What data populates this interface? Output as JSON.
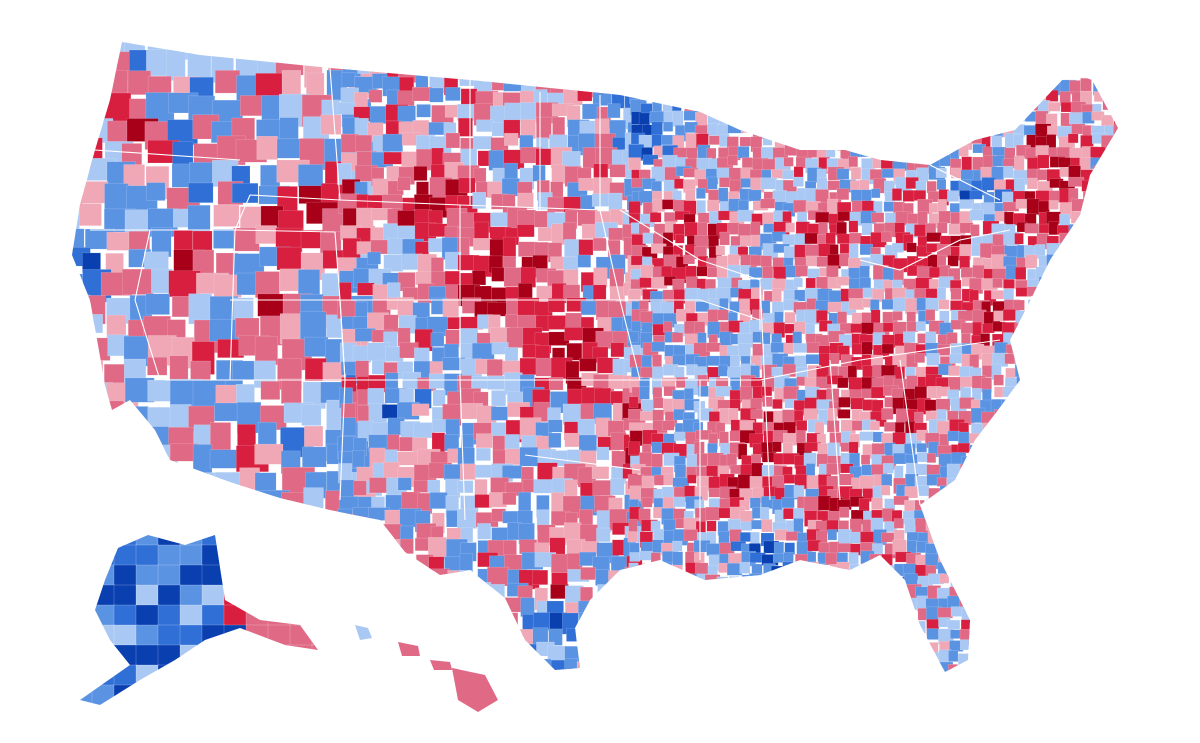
{
  "map": {
    "type": "choropleth",
    "subject": "us-counties",
    "legend": "none",
    "palette": {
      "dark_blue": "#0a3fb0",
      "blue": "#2f6fd6",
      "mid_blue": "#5b93e3",
      "light_blue": "#a9c8f3",
      "light_red": "#f0a7b6",
      "mid_red": "#e06a86",
      "red": "#d81f3f",
      "dark_red": "#a80019",
      "background": "#ffffff",
      "boundary": "#ffffff"
    },
    "regions": [
      "contiguous-us",
      "alaska",
      "hawaii"
    ]
  }
}
